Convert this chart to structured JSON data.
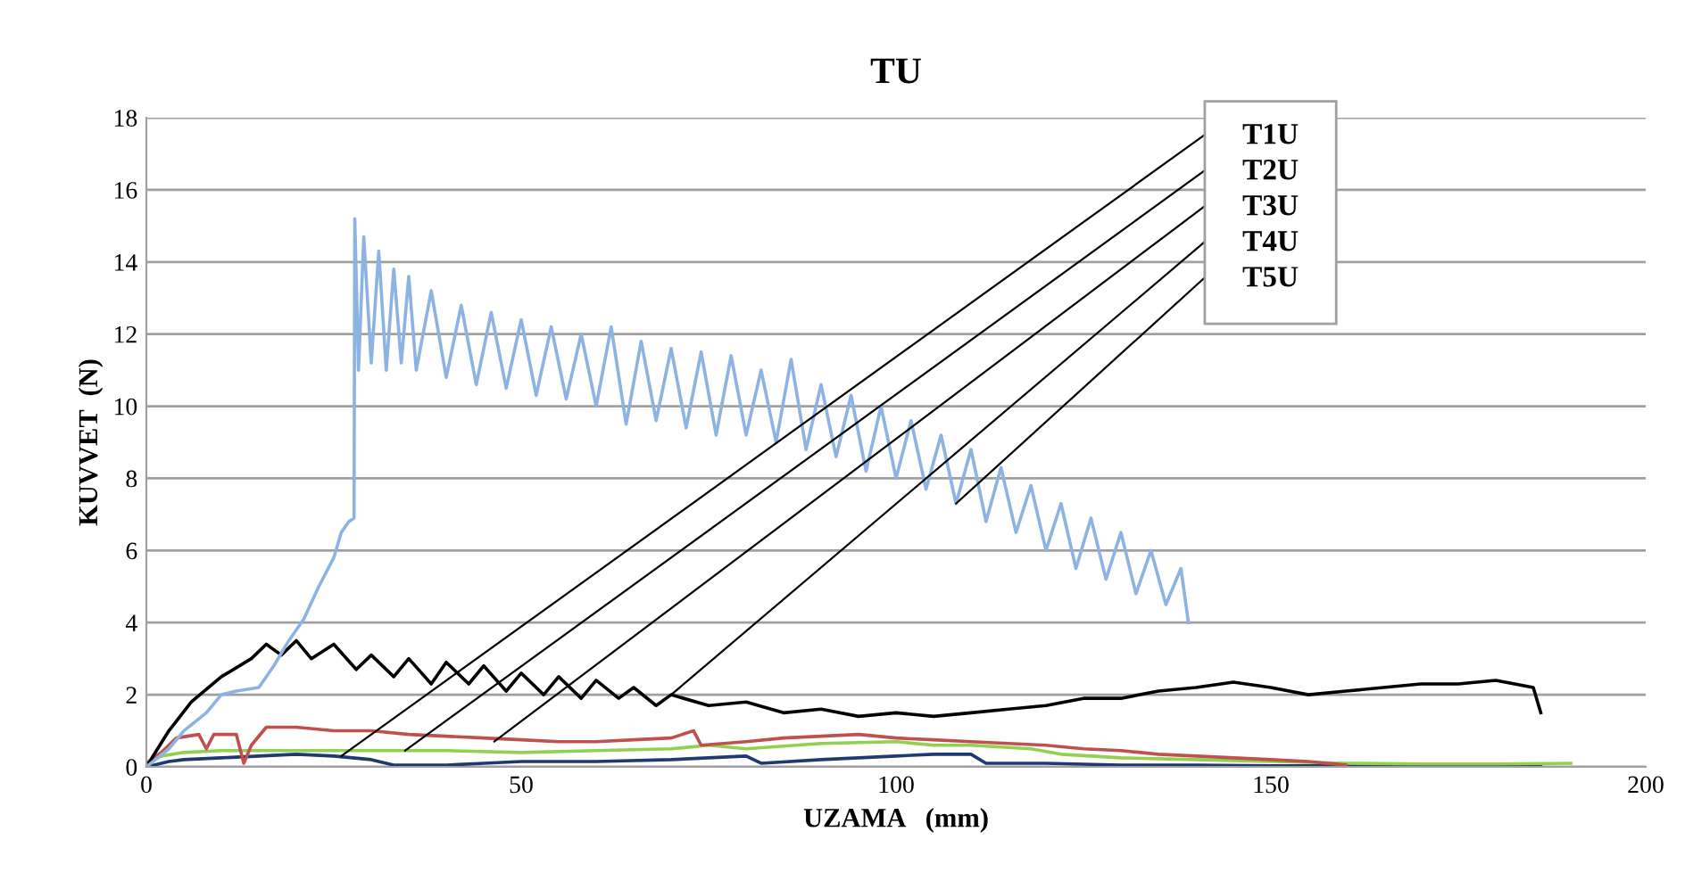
{
  "chart_data": {
    "type": "line",
    "title": "TU",
    "xlabel": "UZAMA   (mm)",
    "ylabel": "KUVVET  (N)",
    "xlim": [
      0,
      200
    ],
    "xticks": [
      0,
      50,
      100,
      150,
      200
    ],
    "ylim": [
      0,
      18
    ],
    "yticks": [
      0,
      2,
      4,
      6,
      8,
      10,
      12,
      14,
      16,
      18
    ],
    "grid": "y",
    "series": [
      {
        "color": "#1f3a6e",
        "x": [
          0,
          3,
          5,
          10,
          15,
          20,
          25,
          30,
          33,
          40,
          45,
          50,
          60,
          70,
          80,
          82,
          90,
          100,
          105,
          110,
          112,
          120,
          130,
          140,
          150,
          160,
          170,
          180,
          186
        ],
        "values": [
          0,
          0.15,
          0.2,
          0.25,
          0.3,
          0.35,
          0.3,
          0.2,
          0.05,
          0.05,
          0.1,
          0.15,
          0.15,
          0.2,
          0.3,
          0.1,
          0.2,
          0.3,
          0.35,
          0.35,
          0.1,
          0.1,
          0.05,
          0.05,
          0.03,
          0.03,
          0.03,
          0.03,
          0.03
        ]
      },
      {
        "color": "#92d050",
        "x": [
          0,
          2,
          5,
          10,
          20,
          30,
          40,
          50,
          60,
          70,
          75,
          80,
          90,
          100,
          105,
          110,
          118,
          122,
          130,
          140,
          150,
          160,
          170,
          180,
          190
        ],
        "values": [
          0.1,
          0.3,
          0.4,
          0.45,
          0.45,
          0.45,
          0.45,
          0.4,
          0.45,
          0.5,
          0.6,
          0.5,
          0.65,
          0.7,
          0.6,
          0.6,
          0.5,
          0.35,
          0.25,
          0.2,
          0.15,
          0.1,
          0.08,
          0.08,
          0.1
        ]
      },
      {
        "color": "#c0504d",
        "x": [
          0,
          2,
          4,
          7,
          8,
          9,
          12,
          13,
          14,
          16,
          20,
          25,
          30,
          35,
          40,
          45,
          50,
          55,
          60,
          65,
          70,
          73,
          74,
          80,
          85,
          90,
          95,
          100,
          105,
          110,
          115,
          120,
          125,
          130,
          135,
          140,
          145,
          150,
          155,
          160
        ],
        "values": [
          0.1,
          0.4,
          0.8,
          0.9,
          0.5,
          0.9,
          0.9,
          0.1,
          0.6,
          1.1,
          1.1,
          1.0,
          1.0,
          0.9,
          0.85,
          0.8,
          0.75,
          0.7,
          0.7,
          0.75,
          0.8,
          1.0,
          0.6,
          0.7,
          0.8,
          0.85,
          0.9,
          0.8,
          0.75,
          0.7,
          0.65,
          0.6,
          0.5,
          0.45,
          0.35,
          0.3,
          0.25,
          0.2,
          0.15,
          0.05
        ]
      },
      {
        "color": "#000000",
        "x": [
          0,
          3,
          6,
          10,
          14,
          16,
          18,
          20,
          22,
          25,
          28,
          30,
          33,
          35,
          38,
          40,
          43,
          45,
          48,
          50,
          53,
          55,
          58,
          60,
          63,
          65,
          68,
          70,
          75,
          80,
          85,
          90,
          95,
          100,
          105,
          110,
          115,
          120,
          125,
          130,
          135,
          140,
          145,
          150,
          155,
          160,
          165,
          170,
          175,
          180,
          185,
          186
        ],
        "values": [
          0,
          1.0,
          1.8,
          2.5,
          3.0,
          3.4,
          3.1,
          3.5,
          3.0,
          3.4,
          2.7,
          3.1,
          2.5,
          3.0,
          2.3,
          2.9,
          2.3,
          2.8,
          2.1,
          2.6,
          2.0,
          2.5,
          1.9,
          2.4,
          1.9,
          2.2,
          1.7,
          2.0,
          1.7,
          1.8,
          1.5,
          1.6,
          1.4,
          1.5,
          1.4,
          1.5,
          1.6,
          1.7,
          1.9,
          1.9,
          2.1,
          2.2,
          2.35,
          2.2,
          2.0,
          2.1,
          2.2,
          2.3,
          2.3,
          2.4,
          2.2,
          1.5
        ]
      },
      {
        "color": "#8db3e2",
        "x": [
          0,
          3,
          5,
          8,
          10,
          12,
          15,
          17,
          19,
          21,
          23,
          25,
          26,
          27,
          27.7,
          27.8,
          28.3,
          29,
          30,
          31,
          32,
          33,
          34,
          35,
          36,
          38,
          40,
          42,
          44,
          46,
          48,
          50,
          52,
          54,
          56,
          58,
          60,
          62,
          64,
          66,
          68,
          70,
          72,
          74,
          76,
          78,
          80,
          82,
          84,
          86,
          88,
          90,
          92,
          94,
          96,
          98,
          100,
          102,
          104,
          106,
          108,
          110,
          112,
          114,
          116,
          118,
          120,
          122,
          124,
          126,
          128,
          130,
          132,
          134,
          136,
          138,
          139
        ],
        "values": [
          0,
          0.5,
          1.0,
          1.5,
          2.0,
          2.1,
          2.2,
          2.8,
          3.5,
          4.1,
          5.0,
          5.8,
          6.5,
          6.8,
          6.9,
          15.2,
          11.0,
          14.7,
          11.2,
          14.3,
          11.0,
          13.8,
          11.2,
          13.6,
          11.0,
          13.2,
          10.8,
          12.8,
          10.6,
          12.6,
          10.5,
          12.4,
          10.3,
          12.2,
          10.2,
          12.0,
          10.0,
          12.2,
          9.5,
          11.8,
          9.6,
          11.6,
          9.4,
          11.5,
          9.2,
          11.4,
          9.2,
          11.0,
          9.0,
          11.3,
          8.8,
          10.6,
          8.6,
          10.3,
          8.2,
          10.0,
          8.0,
          9.6,
          7.7,
          9.2,
          7.3,
          8.8,
          6.8,
          8.3,
          6.5,
          7.8,
          6.0,
          7.3,
          5.5,
          6.9,
          5.2,
          6.5,
          4.8,
          6.0,
          4.5,
          5.5,
          4.0
        ]
      }
    ],
    "annotations": [
      {
        "text": "T1U",
        "x": 26,
        "y": 0.3
      },
      {
        "text": "T2U",
        "x": 34.5,
        "y": 0.45
      },
      {
        "text": "T3U",
        "x": 46.4,
        "y": 0.7
      },
      {
        "text": "T4U",
        "x": 70,
        "y": 2.0
      },
      {
        "text": "T5U",
        "x": 108,
        "y": 7.3
      }
    ]
  }
}
